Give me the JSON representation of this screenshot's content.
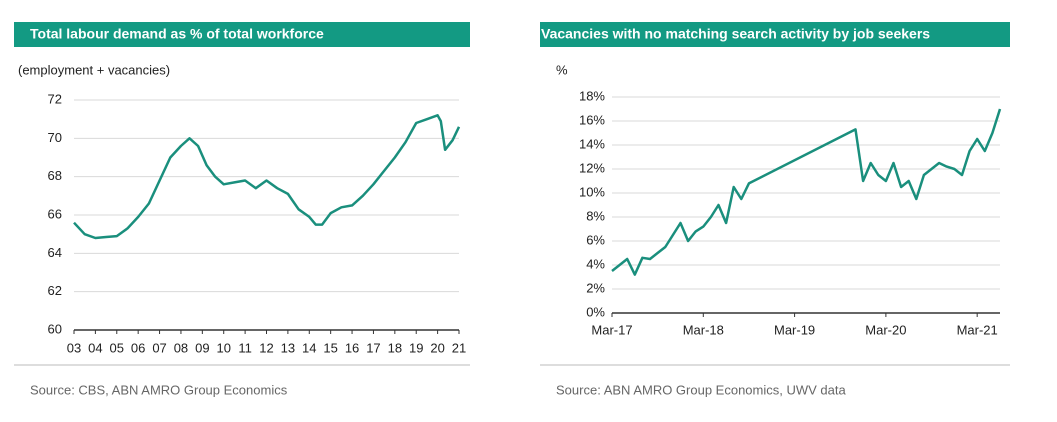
{
  "chart_data": [
    {
      "type": "line",
      "title": "Total labour demand as % of total workforce",
      "subtitle": "(employment + vacancies)",
      "source": "Source: CBS, ABN AMRO Group Economics",
      "x": [
        3,
        3.5,
        4,
        4.5,
        5,
        5.5,
        6,
        6.5,
        7,
        7.5,
        8,
        8.4,
        8.8,
        9.2,
        9.6,
        10,
        10.5,
        11,
        11.5,
        12,
        12.5,
        13,
        13.5,
        14,
        14.3,
        14.6,
        15,
        15.5,
        16,
        16.5,
        17,
        17.5,
        18,
        18.5,
        19,
        19.5,
        20,
        20.15,
        20.35,
        20.7,
        21
      ],
      "series": [
        {
          "name": "Total labour demand",
          "color": "#1a8f7d",
          "values": [
            65.6,
            65.0,
            64.8,
            64.85,
            64.9,
            65.3,
            65.9,
            66.6,
            67.8,
            69.0,
            69.6,
            70.0,
            69.6,
            68.6,
            68.0,
            67.6,
            67.7,
            67.8,
            67.4,
            67.8,
            67.4,
            67.1,
            66.3,
            65.9,
            65.5,
            65.5,
            66.1,
            66.4,
            66.5,
            67.0,
            67.6,
            68.3,
            69.0,
            69.8,
            70.8,
            71.0,
            71.2,
            70.9,
            69.4,
            69.9,
            70.6
          ]
        }
      ],
      "xlim": [
        3,
        21
      ],
      "xticks": [
        {
          "value": 3,
          "label": "03"
        },
        {
          "value": 4,
          "label": "04"
        },
        {
          "value": 5,
          "label": "05"
        },
        {
          "value": 6,
          "label": "06"
        },
        {
          "value": 7,
          "label": "07"
        },
        {
          "value": 8,
          "label": "08"
        },
        {
          "value": 9,
          "label": "09"
        },
        10,
        11,
        12,
        13,
        14,
        15,
        16,
        17,
        18,
        19,
        20,
        21
      ],
      "ylim": [
        60,
        72
      ],
      "yticks": [
        60,
        62,
        64,
        66,
        68,
        70,
        72
      ],
      "grid": true
    },
    {
      "type": "line",
      "title": "Vacancies with no matching search activity by job seekers",
      "subtitle": "%",
      "source": "Source: ABN AMRO Group Economics, UWV data",
      "x": [
        "2017-03",
        "2017-04",
        "2017-05",
        "2017-06",
        "2017-07",
        "2017-08",
        "2017-09",
        "2017-10",
        "2017-11",
        "2017-12",
        "2018-01",
        "2018-02",
        "2018-03",
        "2018-04",
        "2018-05",
        "2018-06",
        "2018-07",
        "2018-08",
        "2018-09",
        "2019-11",
        "2019-12",
        "2020-01",
        "2020-02",
        "2020-03",
        "2020-04",
        "2020-05",
        "2020-06",
        "2020-07",
        "2020-08",
        "2020-09",
        "2020-10",
        "2020-11",
        "2020-12",
        "2021-01",
        "2021-02",
        "2021-03",
        "2021-04",
        "2021-05",
        "2021-06"
      ],
      "series": [
        {
          "name": "Vacancies",
          "color": "#1a8f7d",
          "values": [
            3.5,
            4.0,
            4.5,
            3.2,
            4.6,
            4.5,
            5.0,
            5.5,
            6.5,
            7.5,
            6.0,
            6.8,
            7.2,
            8.0,
            9.0,
            7.5,
            10.5,
            9.5,
            10.8,
            15.3,
            11.0,
            12.5,
            11.5,
            11.0,
            12.5,
            10.5,
            11.0,
            9.5,
            11.5,
            12.0,
            12.5,
            12.2,
            12.0,
            11.5,
            13.5,
            14.5,
            13.5,
            15.0,
            17.0
          ]
        }
      ],
      "xlim": [
        "2017-03",
        "2021-06"
      ],
      "xticks": [
        {
          "value": "2017-03",
          "label": "Mar-17"
        },
        {
          "value": "2018-03",
          "label": "Mar-18"
        },
        {
          "value": "2019-03",
          "label": "Mar-19"
        },
        {
          "value": "2020-03",
          "label": "Mar-20"
        },
        {
          "value": "2021-03",
          "label": "Mar-21"
        }
      ],
      "ylim": [
        0,
        18
      ],
      "yticks": [
        {
          "value": 0,
          "label": "0%"
        },
        {
          "value": 2,
          "label": "2%"
        },
        {
          "value": 4,
          "label": "4%"
        },
        {
          "value": 6,
          "label": "6%"
        },
        {
          "value": 8,
          "label": "8%"
        },
        {
          "value": 10,
          "label": "10%"
        },
        {
          "value": 12,
          "label": "12%"
        },
        {
          "value": 14,
          "label": "14%"
        },
        {
          "value": 16,
          "label": "16%"
        },
        {
          "value": 18,
          "label": "18%"
        }
      ],
      "grid": true
    }
  ]
}
